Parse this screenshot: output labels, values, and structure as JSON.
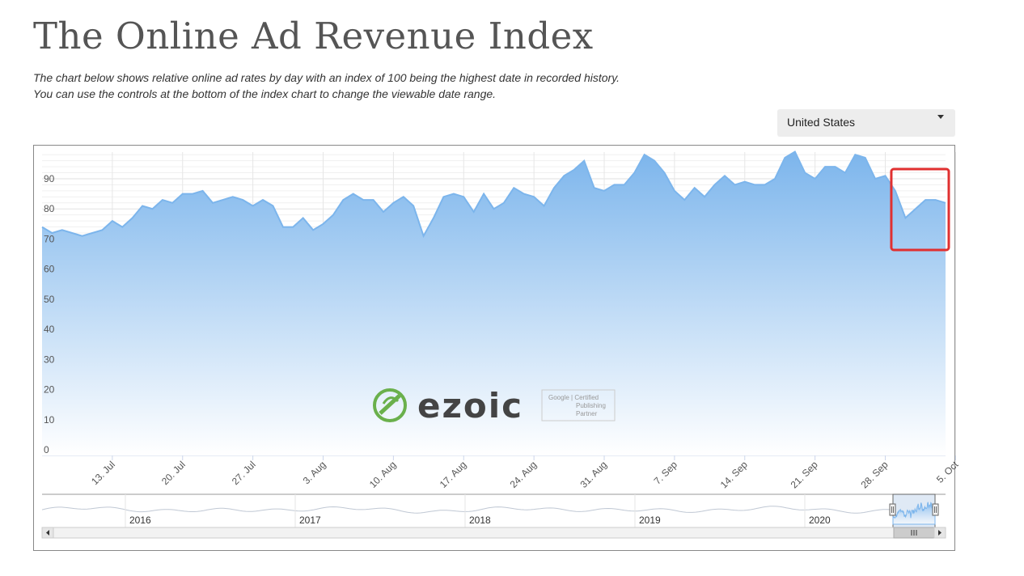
{
  "page": {
    "title": "The Online Ad Revenue Index",
    "description_line1": "The chart below shows relative online ad rates by day with an index of 100 being the highest date in recorded history.",
    "description_line2": "You can use the controls at the bottom of the index chart to change the viewable date range."
  },
  "region_select": {
    "value": "United States"
  },
  "watermark": {
    "brand": "ezoic",
    "badge_line1": "Google | Certified",
    "badge_line2": "Publishing",
    "badge_line3": "Partner"
  },
  "colors": {
    "line": "#7cb5ec",
    "fill_top": "#7cb5ec",
    "fill_bottom": "#ffffff",
    "highlight": "#e03030",
    "ezoic_green": "#6ab04c"
  },
  "navigator": {
    "years": [
      "2016",
      "2017",
      "2018",
      "2019",
      "2020"
    ]
  },
  "chart_data": {
    "type": "area",
    "title": "",
    "xlabel": "",
    "ylabel": "",
    "ylim": [
      0,
      100
    ],
    "yticks": [
      0,
      10,
      20,
      30,
      40,
      50,
      60,
      70,
      80,
      90
    ],
    "xtick_labels": [
      "13. Jul",
      "20. Jul",
      "27. Jul",
      "3. Aug",
      "10. Aug",
      "17. Aug",
      "24. Aug",
      "31. Aug",
      "7. Sep",
      "14. Sep",
      "21. Sep",
      "28. Sep",
      "5. Oct"
    ],
    "x_start": "2020-07-06",
    "grid": true,
    "legend": "none",
    "highlight_range": [
      "2020-09-29",
      "2020-10-04"
    ],
    "values": [
      74,
      72,
      73,
      72,
      71,
      72,
      73,
      76,
      74,
      77,
      81,
      80,
      83,
      82,
      85,
      85,
      86,
      82,
      83,
      84,
      83,
      81,
      83,
      81,
      74,
      74,
      77,
      73,
      75,
      78,
      83,
      85,
      83,
      83,
      79,
      82,
      84,
      81,
      71,
      77,
      84,
      85,
      84,
      79,
      85,
      80,
      82,
      87,
      85,
      84,
      81,
      87,
      91,
      93,
      96,
      87,
      86,
      88,
      88,
      92,
      98,
      96,
      92,
      86,
      83,
      87,
      84,
      88,
      91,
      88,
      89,
      88,
      88,
      90,
      97,
      99,
      92,
      90,
      94,
      94,
      92,
      98,
      97,
      90,
      91,
      86,
      77,
      80,
      83,
      83,
      82
    ]
  }
}
